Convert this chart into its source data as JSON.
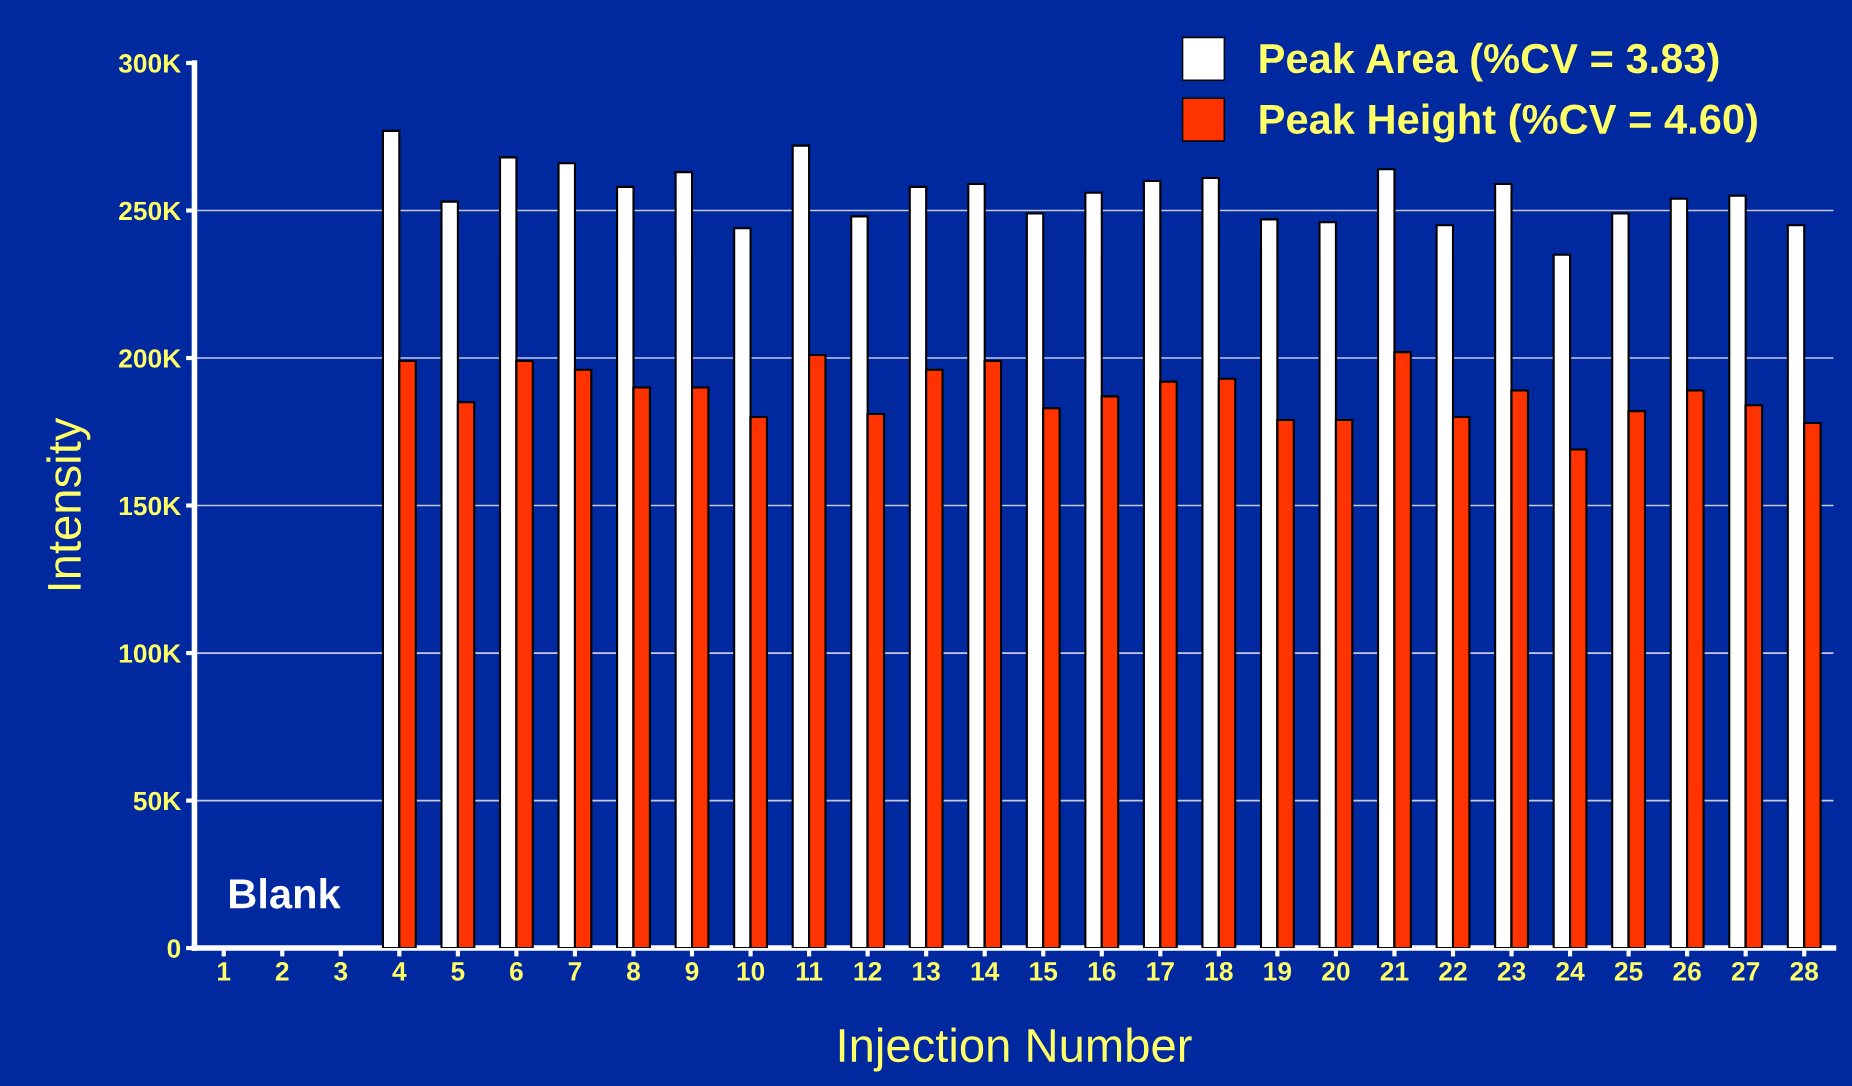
{
  "chart_data": {
    "type": "bar",
    "xlabel": "Injection Number",
    "ylabel": "Intensity",
    "categories": [
      "1",
      "2",
      "3",
      "4",
      "5",
      "6",
      "7",
      "8",
      "9",
      "10",
      "11",
      "12",
      "13",
      "14",
      "15",
      "16",
      "17",
      "18",
      "19",
      "20",
      "21",
      "22",
      "23",
      "24",
      "25",
      "26",
      "27",
      "28"
    ],
    "series": [
      {
        "name": "Peak Area (%CV = 3.83)",
        "color": "#ffffff",
        "values": [
          null,
          null,
          null,
          277000,
          253000,
          268000,
          266000,
          258000,
          263000,
          244000,
          272000,
          248000,
          258000,
          259000,
          249000,
          256000,
          260000,
          261000,
          247000,
          246000,
          264000,
          245000,
          259000,
          235000,
          249000,
          254000,
          255000,
          245000
        ]
      },
      {
        "name": "Peak Height (%CV = 4.60)",
        "color": "#ff3300",
        "values": [
          null,
          null,
          null,
          199000,
          185000,
          199000,
          196000,
          190000,
          190000,
          180000,
          201000,
          181000,
          196000,
          199000,
          183000,
          187000,
          192000,
          193000,
          179000,
          179000,
          202000,
          180000,
          189000,
          169000,
          182000,
          189000,
          184000,
          178000
        ]
      }
    ],
    "ylim": [
      0,
      300000
    ],
    "yticks": [
      {
        "value": 0,
        "label": "0"
      },
      {
        "value": 50000,
        "label": "50K"
      },
      {
        "value": 100000,
        "label": "100K"
      },
      {
        "value": 150000,
        "label": "150K"
      },
      {
        "value": 200000,
        "label": "200K"
      },
      {
        "value": 250000,
        "label": "250K"
      },
      {
        "value": 300000,
        "label": "300K"
      }
    ],
    "grid": "y",
    "legend": "top right",
    "annotations": [
      "Blank"
    ]
  }
}
